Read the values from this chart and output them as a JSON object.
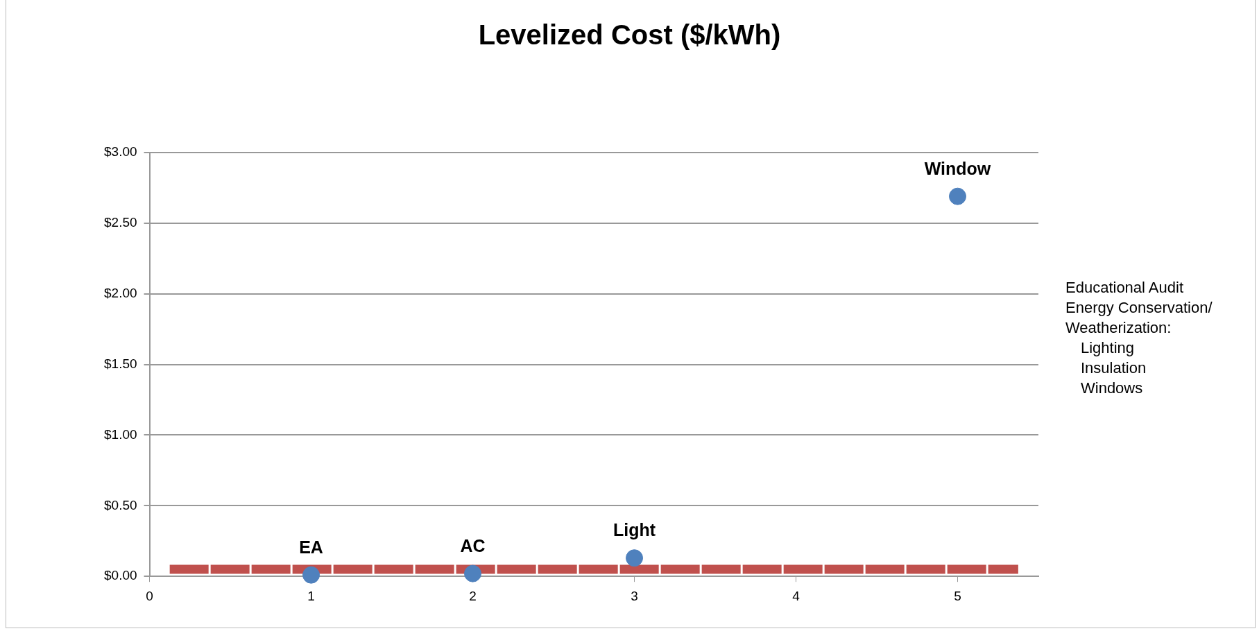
{
  "chart_data": {
    "type": "scatter",
    "title": "Levelized Cost ($/kWh)",
    "series": [
      {
        "color": "#4f81bd",
        "x": [
          1,
          2,
          3,
          5
        ],
        "values": [
          0.01,
          0.02,
          0.13,
          2.69
        ],
        "marker": "circle"
      },
      {
        "type": "line",
        "color": "#c0504d",
        "x": [
          0.125,
          5.375
        ],
        "values": [
          0.05,
          0.05
        ],
        "marker": "none",
        "line_style": "dashed"
      }
    ],
    "xlim": [
      0,
      5.5
    ],
    "xticks": [
      0,
      1,
      2,
      3,
      4,
      5
    ],
    "ylim": [
      0,
      3
    ],
    "yticks": [
      {
        "value": 0,
        "label": "$0.00"
      },
      {
        "value": 0.5,
        "label": "$0.50"
      },
      {
        "value": 1,
        "label": "$1.00"
      },
      {
        "value": 1.5,
        "label": "$1.50"
      },
      {
        "value": 2,
        "label": "$2.00"
      },
      {
        "value": 2.5,
        "label": "$2.50"
      },
      {
        "value": 3,
        "label": "$3.00"
      }
    ],
    "grid": "y",
    "legend": false,
    "annotations": [
      {
        "text": "EA",
        "x": 1,
        "y": 0.01
      },
      {
        "text": "AC",
        "x": 2,
        "y": 0.02
      },
      {
        "text": "Light",
        "x": 3,
        "y": 0.13
      },
      {
        "text": "Window",
        "x": 5,
        "y": 2.69
      },
      "Educational Audit",
      "Energy Conservation/",
      "Weatherization:",
      "Lighting",
      "Insulation",
      "Windows"
    ]
  }
}
